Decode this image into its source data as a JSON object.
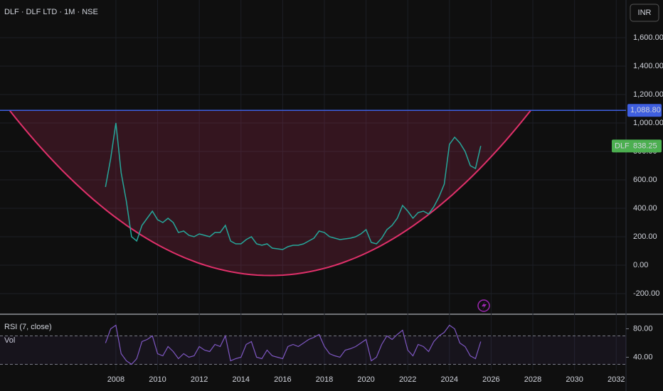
{
  "chart_data": [
    {
      "type": "line",
      "title": "DLF · DLF LTD · 1M · NSE",
      "currency": "INR",
      "x": [
        2007.5,
        2007.75,
        2008,
        2008.25,
        2008.5,
        2008.75,
        2009,
        2009.25,
        2009.5,
        2009.75,
        2010,
        2010.25,
        2010.5,
        2010.75,
        2011,
        2011.25,
        2011.5,
        2011.75,
        2012,
        2012.25,
        2012.5,
        2012.75,
        2013,
        2013.25,
        2013.5,
        2013.75,
        2014,
        2014.25,
        2014.5,
        2014.75,
        2015,
        2015.25,
        2015.5,
        2015.75,
        2016,
        2016.25,
        2016.5,
        2016.75,
        2017,
        2017.25,
        2017.5,
        2017.75,
        2018,
        2018.25,
        2018.5,
        2018.75,
        2019,
        2019.25,
        2019.5,
        2019.75,
        2020,
        2020.25,
        2020.5,
        2020.75,
        2021,
        2021.25,
        2021.5,
        2021.75,
        2022,
        2022.25,
        2022.5,
        2022.75,
        2023,
        2023.25,
        2023.5,
        2023.75,
        2024,
        2024.25,
        2024.5,
        2024.75,
        2025,
        2025.25,
        2025.5
      ],
      "series": [
        {
          "name": "DLF",
          "color": "#26a69a",
          "values": [
            550,
            750,
            1000,
            650,
            450,
            200,
            170,
            280,
            330,
            380,
            320,
            300,
            330,
            300,
            230,
            240,
            210,
            200,
            220,
            210,
            200,
            230,
            230,
            280,
            170,
            150,
            150,
            180,
            200,
            150,
            140,
            150,
            120,
            115,
            110,
            130,
            140,
            140,
            150,
            170,
            190,
            240,
            230,
            200,
            190,
            180,
            185,
            190,
            200,
            220,
            250,
            160,
            150,
            190,
            250,
            280,
            330,
            420,
            380,
            330,
            370,
            380,
            360,
            410,
            480,
            570,
            850,
            900,
            860,
            800,
            700,
            680,
            838.25
          ]
        }
      ],
      "resistance": {
        "value": 1088.8,
        "label": "1,088.80",
        "color": "#3f5fe0"
      },
      "cup": {
        "x": [
          2002.9,
          2016,
          2027.9
        ],
        "values": [
          1088.8,
          -70,
          1088.8
        ],
        "color": "#e0306a"
      },
      "xlim": [
        2002.44,
        2032.47
      ],
      "xticks": [
        2008,
        2010,
        2012,
        2014,
        2016,
        2018,
        2020,
        2022,
        2024,
        2026,
        2028,
        2030,
        2032
      ],
      "ylim": [
        -335,
        1865
      ],
      "yticks": [
        {
          "value": -200,
          "label": "-200.00"
        },
        {
          "value": 0,
          "label": "0.00"
        },
        {
          "value": 200,
          "label": "200.00"
        },
        {
          "value": 400,
          "label": "400.00"
        },
        {
          "value": 600,
          "label": "600.00"
        },
        {
          "value": 800,
          "label": "800.00"
        },
        {
          "value": 1000,
          "label": "1,000.00"
        },
        {
          "value": 1200,
          "label": "1,200.00"
        },
        {
          "value": 1400,
          "label": "1,400.00"
        },
        {
          "value": 1600,
          "label": "1,600.00"
        }
      ]
    },
    {
      "type": "line",
      "title": "RSI (7, close)",
      "volume_label": "Vol",
      "color": "#7e57c2",
      "values": [
        60,
        80,
        85,
        45,
        35,
        30,
        38,
        62,
        65,
        70,
        45,
        42,
        55,
        48,
        38,
        45,
        40,
        42,
        55,
        50,
        48,
        58,
        55,
        70,
        35,
        38,
        40,
        58,
        62,
        40,
        38,
        50,
        42,
        40,
        38,
        55,
        58,
        55,
        60,
        65,
        68,
        72,
        55,
        45,
        42,
        40,
        50,
        52,
        55,
        60,
        65,
        35,
        40,
        58,
        70,
        65,
        72,
        78,
        50,
        42,
        58,
        55,
        48,
        62,
        70,
        75,
        85,
        80,
        60,
        55,
        42,
        38,
        62
      ],
      "ylim": [
        21.5,
        98.5
      ],
      "yticks": [
        {
          "value": 40,
          "label": "40.00"
        },
        {
          "value": 80,
          "label": "80.00"
        }
      ],
      "bands": [
        30,
        70
      ]
    }
  ]
}
